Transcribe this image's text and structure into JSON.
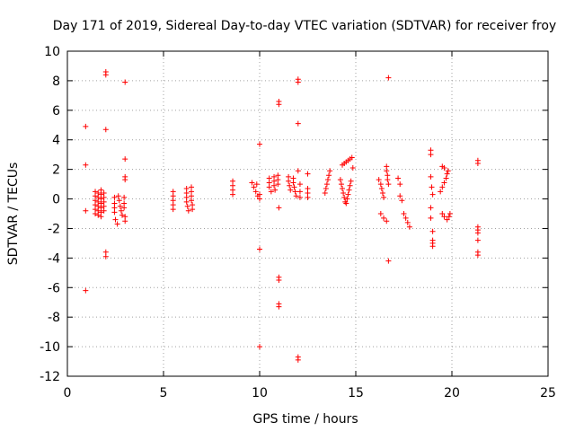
{
  "chart_data": {
    "type": "scatter",
    "title": "Day 171 of 2019, Sidereal Day-to-day VTEC variation (SDTVAR) for receiver froy",
    "xlabel": "GPS time / hours",
    "ylabel": "SDTVAR / TECUs",
    "xlim": [
      0,
      25
    ],
    "ylim": [
      -12,
      10
    ],
    "xticks": [
      0,
      5,
      10,
      15,
      20,
      25
    ],
    "xtick_labels": [
      "0",
      "5",
      "10",
      "15",
      "20",
      "25"
    ],
    "yticks": [
      -12,
      -10,
      -8,
      -6,
      -4,
      -2,
      0,
      2,
      4,
      6,
      8,
      10
    ],
    "ytick_labels": [
      "-12",
      "-10",
      "-8",
      "-6",
      "-4",
      "-2",
      "0",
      "2",
      "4",
      "6",
      "8",
      "10"
    ],
    "grid": true,
    "marker": "plus",
    "color": "#ff0000",
    "series": [
      {
        "name": "SDTVAR",
        "points": [
          [
            0.95,
            4.9
          ],
          [
            0.95,
            2.3
          ],
          [
            0.95,
            -0.8
          ],
          [
            0.95,
            -6.2
          ],
          [
            1.45,
            0.5
          ],
          [
            1.45,
            0.2
          ],
          [
            1.45,
            -0.1
          ],
          [
            1.45,
            -0.4
          ],
          [
            1.45,
            -0.7
          ],
          [
            1.45,
            -1.0
          ],
          [
            1.6,
            0.4
          ],
          [
            1.6,
            0.1
          ],
          [
            1.6,
            -0.2
          ],
          [
            1.6,
            -0.5
          ],
          [
            1.6,
            -0.8
          ],
          [
            1.6,
            -1.1
          ],
          [
            1.75,
            0.6
          ],
          [
            1.75,
            0.3
          ],
          [
            1.75,
            0.0
          ],
          [
            1.75,
            -0.3
          ],
          [
            1.75,
            -0.6
          ],
          [
            1.75,
            -0.9
          ],
          [
            1.75,
            -1.2
          ],
          [
            1.9,
            0.4
          ],
          [
            1.9,
            0.1
          ],
          [
            1.9,
            -0.2
          ],
          [
            1.9,
            -0.5
          ],
          [
            1.9,
            -0.8
          ],
          [
            2.0,
            8.6
          ],
          [
            2.0,
            8.4
          ],
          [
            2.0,
            4.7
          ],
          [
            2.0,
            -3.6
          ],
          [
            2.0,
            -3.9
          ],
          [
            2.45,
            0.1
          ],
          [
            2.45,
            -0.3
          ],
          [
            2.45,
            -0.6
          ],
          [
            2.45,
            -0.9
          ],
          [
            2.5,
            -1.4
          ],
          [
            2.6,
            -1.7
          ],
          [
            2.65,
            0.2
          ],
          [
            2.7,
            -0.1
          ],
          [
            2.75,
            -0.5
          ],
          [
            2.8,
            -0.8
          ],
          [
            2.85,
            -1.1
          ],
          [
            2.95,
            0.1
          ],
          [
            2.95,
            -0.3
          ],
          [
            2.95,
            -0.6
          ],
          [
            3.0,
            -1.2
          ],
          [
            3.0,
            -1.5
          ],
          [
            3.0,
            7.9
          ],
          [
            3.0,
            2.7
          ],
          [
            3.0,
            1.5
          ],
          [
            3.0,
            1.3
          ],
          [
            5.5,
            0.5
          ],
          [
            5.5,
            0.2
          ],
          [
            5.5,
            -0.1
          ],
          [
            5.5,
            -0.4
          ],
          [
            5.5,
            -0.7
          ],
          [
            6.2,
            0.7
          ],
          [
            6.2,
            0.4
          ],
          [
            6.2,
            0.1
          ],
          [
            6.2,
            -0.2
          ],
          [
            6.25,
            -0.5
          ],
          [
            6.3,
            -0.8
          ],
          [
            6.45,
            0.8
          ],
          [
            6.45,
            0.5
          ],
          [
            6.45,
            0.2
          ],
          [
            6.45,
            -0.1
          ],
          [
            6.5,
            -0.4
          ],
          [
            6.5,
            -0.7
          ],
          [
            8.6,
            1.2
          ],
          [
            8.6,
            0.9
          ],
          [
            8.6,
            0.6
          ],
          [
            8.6,
            0.3
          ],
          [
            9.6,
            1.1
          ],
          [
            9.7,
            0.8
          ],
          [
            9.8,
            0.5
          ],
          [
            9.9,
            0.2
          ],
          [
            10.0,
            0.0
          ],
          [
            10.0,
            0.3
          ],
          [
            9.85,
            1.0
          ],
          [
            10.0,
            3.7
          ],
          [
            10.0,
            -3.4
          ],
          [
            10.0,
            -10.0
          ],
          [
            10.5,
            1.4
          ],
          [
            10.5,
            1.1
          ],
          [
            10.5,
            0.8
          ],
          [
            10.6,
            0.5
          ],
          [
            10.75,
            1.5
          ],
          [
            10.75,
            1.2
          ],
          [
            10.75,
            0.9
          ],
          [
            10.8,
            0.6
          ],
          [
            10.95,
            1.6
          ],
          [
            10.95,
            1.3
          ],
          [
            10.95,
            1.0
          ],
          [
            11.0,
            6.6
          ],
          [
            11.0,
            6.4
          ],
          [
            11.0,
            -0.6
          ],
          [
            11.0,
            -5.3
          ],
          [
            11.0,
            -5.5
          ],
          [
            11.0,
            -7.1
          ],
          [
            11.0,
            -7.3
          ],
          [
            11.5,
            1.5
          ],
          [
            11.5,
            1.2
          ],
          [
            11.55,
            0.9
          ],
          [
            11.6,
            0.6
          ],
          [
            11.75,
            1.4
          ],
          [
            11.75,
            1.1
          ],
          [
            11.8,
            0.8
          ],
          [
            11.85,
            0.5
          ],
          [
            11.9,
            0.2
          ],
          [
            12.0,
            8.1
          ],
          [
            12.0,
            7.9
          ],
          [
            12.0,
            5.1
          ],
          [
            12.0,
            1.9
          ],
          [
            12.0,
            -10.7
          ],
          [
            12.0,
            -10.9
          ],
          [
            12.1,
            1.0
          ],
          [
            12.1,
            0.5
          ],
          [
            12.1,
            0.1
          ],
          [
            12.5,
            1.7
          ],
          [
            12.5,
            0.7
          ],
          [
            12.5,
            0.4
          ],
          [
            12.5,
            0.1
          ],
          [
            13.4,
            0.4
          ],
          [
            13.45,
            0.7
          ],
          [
            13.5,
            1.0
          ],
          [
            13.55,
            1.3
          ],
          [
            13.6,
            1.6
          ],
          [
            13.65,
            1.9
          ],
          [
            14.2,
            1.3
          ],
          [
            14.25,
            1.0
          ],
          [
            14.3,
            0.7
          ],
          [
            14.35,
            0.4
          ],
          [
            14.4,
            0.1
          ],
          [
            14.45,
            -0.2
          ],
          [
            14.5,
            -0.3
          ],
          [
            14.55,
            0.0
          ],
          [
            14.6,
            0.3
          ],
          [
            14.65,
            0.6
          ],
          [
            14.7,
            0.9
          ],
          [
            14.75,
            1.2
          ],
          [
            14.3,
            2.3
          ],
          [
            14.4,
            2.4
          ],
          [
            14.5,
            2.5
          ],
          [
            14.6,
            2.6
          ],
          [
            14.7,
            2.7
          ],
          [
            14.8,
            2.8
          ],
          [
            14.85,
            2.1
          ],
          [
            16.2,
            1.3
          ],
          [
            16.3,
            1.0
          ],
          [
            16.35,
            0.7
          ],
          [
            16.4,
            0.4
          ],
          [
            16.45,
            0.1
          ],
          [
            16.3,
            -1.0
          ],
          [
            16.45,
            -1.3
          ],
          [
            16.6,
            -1.5
          ],
          [
            16.6,
            2.2
          ],
          [
            16.6,
            1.9
          ],
          [
            16.65,
            1.6
          ],
          [
            16.65,
            1.3
          ],
          [
            16.7,
            1.0
          ],
          [
            16.7,
            8.2
          ],
          [
            16.7,
            -4.2
          ],
          [
            17.2,
            1.4
          ],
          [
            17.3,
            1.0
          ],
          [
            17.3,
            0.2
          ],
          [
            17.4,
            -0.1
          ],
          [
            17.5,
            -1.0
          ],
          [
            17.6,
            -1.3
          ],
          [
            17.7,
            -1.6
          ],
          [
            17.8,
            -1.9
          ],
          [
            18.9,
            3.3
          ],
          [
            18.9,
            3.0
          ],
          [
            18.9,
            1.5
          ],
          [
            18.95,
            0.8
          ],
          [
            19.0,
            0.3
          ],
          [
            18.9,
            -0.6
          ],
          [
            18.9,
            -1.3
          ],
          [
            19.0,
            -2.2
          ],
          [
            19.0,
            -2.8
          ],
          [
            19.0,
            -3.0
          ],
          [
            19.0,
            -3.2
          ],
          [
            19.4,
            0.5
          ],
          [
            19.5,
            0.8
          ],
          [
            19.6,
            1.1
          ],
          [
            19.7,
            1.4
          ],
          [
            19.75,
            1.7
          ],
          [
            19.8,
            1.9
          ],
          [
            19.5,
            2.2
          ],
          [
            19.6,
            2.1
          ],
          [
            19.5,
            -1.0
          ],
          [
            19.6,
            -1.2
          ],
          [
            19.75,
            -1.4
          ],
          [
            19.85,
            -1.2
          ],
          [
            19.9,
            -1.0
          ],
          [
            21.35,
            2.6
          ],
          [
            21.35,
            2.4
          ],
          [
            21.35,
            -1.9
          ],
          [
            21.35,
            -2.1
          ],
          [
            21.35,
            -2.3
          ],
          [
            21.35,
            -2.8
          ],
          [
            21.35,
            -3.6
          ],
          [
            21.35,
            -3.8
          ]
        ]
      }
    ]
  }
}
